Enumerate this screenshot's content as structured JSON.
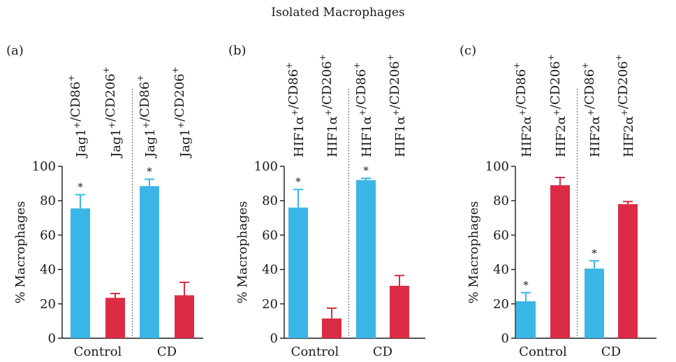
{
  "title": "Isolated Macrophages",
  "colors": {
    "blue": "#3ab6e6",
    "red": "#dc2b44",
    "axis": "#1a1a1a"
  },
  "chart_data": [
    {
      "type": "bar",
      "panel_label": "(a)",
      "ylabel": "% Macrophages",
      "ylim": [
        0,
        100
      ],
      "yticks": [
        "0",
        "20",
        "40",
        "60",
        "80",
        "100"
      ],
      "group_labels": [
        "Control",
        "CD"
      ],
      "bar_labels": [
        {
          "base": "Jag1",
          "sup1": "+",
          "mid": "/CD86",
          "sup2": "+"
        },
        {
          "base": "Jag1",
          "sup1": "+",
          "mid": "/CD206",
          "sup2": "+"
        },
        {
          "base": "Jag1",
          "sup1": "+",
          "mid": "/CD86",
          "sup2": "+"
        },
        {
          "base": "Jag1",
          "sup1": "+",
          "mid": "/CD206",
          "sup2": "+"
        }
      ],
      "bars": [
        {
          "group": "Control",
          "value": 75.5,
          "error": 8,
          "color": "blue",
          "star": "*"
        },
        {
          "group": "Control",
          "value": 23.5,
          "error": 2.5,
          "color": "red",
          "star": ""
        },
        {
          "group": "CD",
          "value": 88.5,
          "error": 4,
          "color": "blue",
          "star": "*"
        },
        {
          "group": "CD",
          "value": 25,
          "error": 7.5,
          "color": "red",
          "star": ""
        }
      ]
    },
    {
      "type": "bar",
      "panel_label": "(b)",
      "ylabel": "% Macrophages",
      "ylim": [
        0,
        100
      ],
      "yticks": [
        "0",
        "20",
        "40",
        "60",
        "80",
        "100"
      ],
      "group_labels": [
        "Control",
        "CD"
      ],
      "bar_labels": [
        {
          "base": "HIF1α",
          "sup1": "+",
          "mid": "/CD86",
          "sup2": "+"
        },
        {
          "base": "HIF1α",
          "sup1": "+",
          "mid": "/CD206",
          "sup2": "+"
        },
        {
          "base": "HIF1α",
          "sup1": "+",
          "mid": "/CD86",
          "sup2": "+"
        },
        {
          "base": "HIF1α",
          "sup1": "+",
          "mid": "/CD206",
          "sup2": "+"
        }
      ],
      "bars": [
        {
          "group": "Control",
          "value": 76,
          "error": 10.5,
          "color": "blue",
          "star": "*"
        },
        {
          "group": "Control",
          "value": 11.5,
          "error": 6,
          "color": "red",
          "star": ""
        },
        {
          "group": "CD",
          "value": 92,
          "error": 1,
          "color": "blue",
          "star": "*"
        },
        {
          "group": "CD",
          "value": 30.5,
          "error": 6,
          "color": "red",
          "star": ""
        }
      ]
    },
    {
      "type": "bar",
      "panel_label": "(c)",
      "ylabel": "% Macrophages",
      "ylim": [
        0,
        100
      ],
      "yticks": [
        "0",
        "20",
        "40",
        "60",
        "80",
        "100"
      ],
      "group_labels": [
        "Control",
        "CD"
      ],
      "bar_labels": [
        {
          "base": "HIF2α",
          "sup1": "+",
          "mid": "/CD86",
          "sup2": "+"
        },
        {
          "base": "HIF2α",
          "sup1": "+",
          "mid": "/CD206",
          "sup2": "+"
        },
        {
          "base": "HIF2α",
          "sup1": "+",
          "mid": "/CD86",
          "sup2": "+"
        },
        {
          "base": "HIF2α",
          "sup1": "+",
          "mid": "/CD206",
          "sup2": "+"
        }
      ],
      "bars": [
        {
          "group": "Control",
          "value": 21.5,
          "error": 5,
          "color": "blue",
          "star": "*"
        },
        {
          "group": "Control",
          "value": 89,
          "error": 4.5,
          "color": "red",
          "star": ""
        },
        {
          "group": "CD",
          "value": 40.5,
          "error": 4.5,
          "color": "blue",
          "star": "*"
        },
        {
          "group": "CD",
          "value": 78,
          "error": 1.5,
          "color": "red",
          "star": ""
        }
      ]
    }
  ]
}
